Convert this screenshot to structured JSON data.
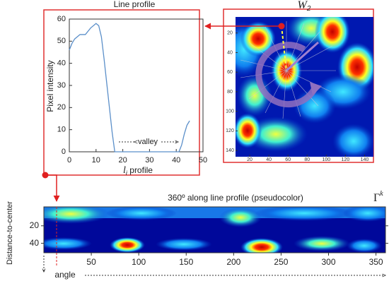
{
  "chart_data": [
    {
      "type": "line",
      "title": "Line profile",
      "y_label": "Pixel intensity",
      "x_label_symbol": "l",
      "x_label_subscript": "i",
      "x_label": "profile",
      "annotation": "valley",
      "x": [
        0,
        1,
        2,
        4,
        6,
        8,
        10,
        11,
        12,
        13,
        14,
        15,
        16,
        17,
        20,
        25,
        30,
        35,
        40,
        41,
        42,
        43,
        44,
        45
      ],
      "values": [
        46,
        49,
        51,
        53,
        53,
        56,
        58,
        57,
        52,
        42,
        31,
        20,
        9,
        0,
        0,
        0,
        0,
        0,
        0,
        0,
        3,
        8,
        12,
        14
      ],
      "color": "#5b8fc9",
      "xlim": [
        0,
        50
      ],
      "ylim": [
        0,
        60
      ],
      "xticks": [
        0,
        10,
        20,
        30,
        40,
        50
      ],
      "yticks": [
        0,
        10,
        20,
        30,
        40,
        50,
        60
      ]
    },
    {
      "type": "image",
      "title": "W",
      "title_subscript": "2",
      "xlim": [
        0,
        150
      ],
      "ylim": [
        0,
        150
      ],
      "y_reversed": true,
      "xticks": [
        20,
        40,
        60,
        80,
        100,
        120,
        140
      ],
      "yticks": [
        20,
        40,
        60,
        80,
        100,
        120,
        140
      ]
    },
    {
      "type": "heatmap",
      "title": "360º along line profile (pseudocolor)",
      "label": "Γ",
      "label_superscript": "k",
      "x_label": "angle",
      "y_label": "Distance-to-center",
      "xlim": [
        0,
        360
      ],
      "ylim": [
        0,
        50
      ],
      "y_reversed": true,
      "xticks": [
        50,
        100,
        150,
        200,
        250,
        300,
        350
      ],
      "yticks": [
        20,
        40
      ]
    }
  ]
}
